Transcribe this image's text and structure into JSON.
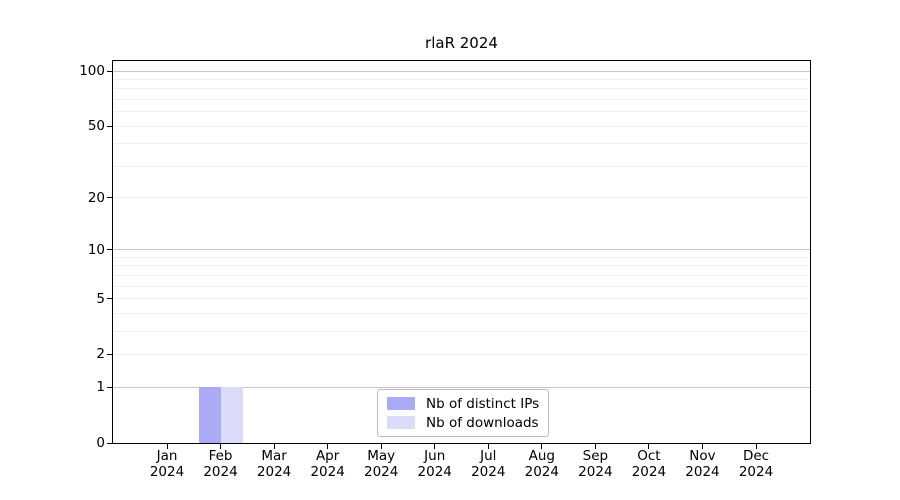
{
  "chart_data": {
    "type": "bar",
    "title": "rlaR 2024",
    "x_tick_months": [
      "Jan",
      "Feb",
      "Mar",
      "Apr",
      "May",
      "Jun",
      "Jul",
      "Aug",
      "Sep",
      "Oct",
      "Nov",
      "Dec"
    ],
    "x_tick_year": "2024",
    "series": [
      {
        "name": "Nb of distinct IPs",
        "color": "#aaaaf7",
        "values": [
          0,
          1,
          0,
          0,
          0,
          0,
          0,
          0,
          0,
          0,
          0,
          0
        ]
      },
      {
        "name": "Nb of downloads",
        "color": "#dcdcfa",
        "values": [
          0,
          1,
          0,
          0,
          0,
          0,
          0,
          0,
          0,
          0,
          0,
          0
        ]
      }
    ],
    "y_scale": "log1p",
    "ylim": [
      0,
      100
    ],
    "y_tick_values": [
      0,
      1,
      2,
      5,
      10,
      20,
      50,
      100
    ],
    "grid_major_values": [
      1,
      10,
      100
    ],
    "grid_minor_values": [
      2,
      3,
      4,
      5,
      6,
      7,
      8,
      9,
      20,
      30,
      40,
      50,
      60,
      70,
      80,
      90
    ],
    "legend_position": "lower center",
    "colors": {
      "distinct_ips": "#aaaaf7",
      "downloads": "#dcdcfa",
      "grid_major": "#c6c6c6",
      "grid_minor": "#efefef",
      "spine": "#000000"
    }
  }
}
